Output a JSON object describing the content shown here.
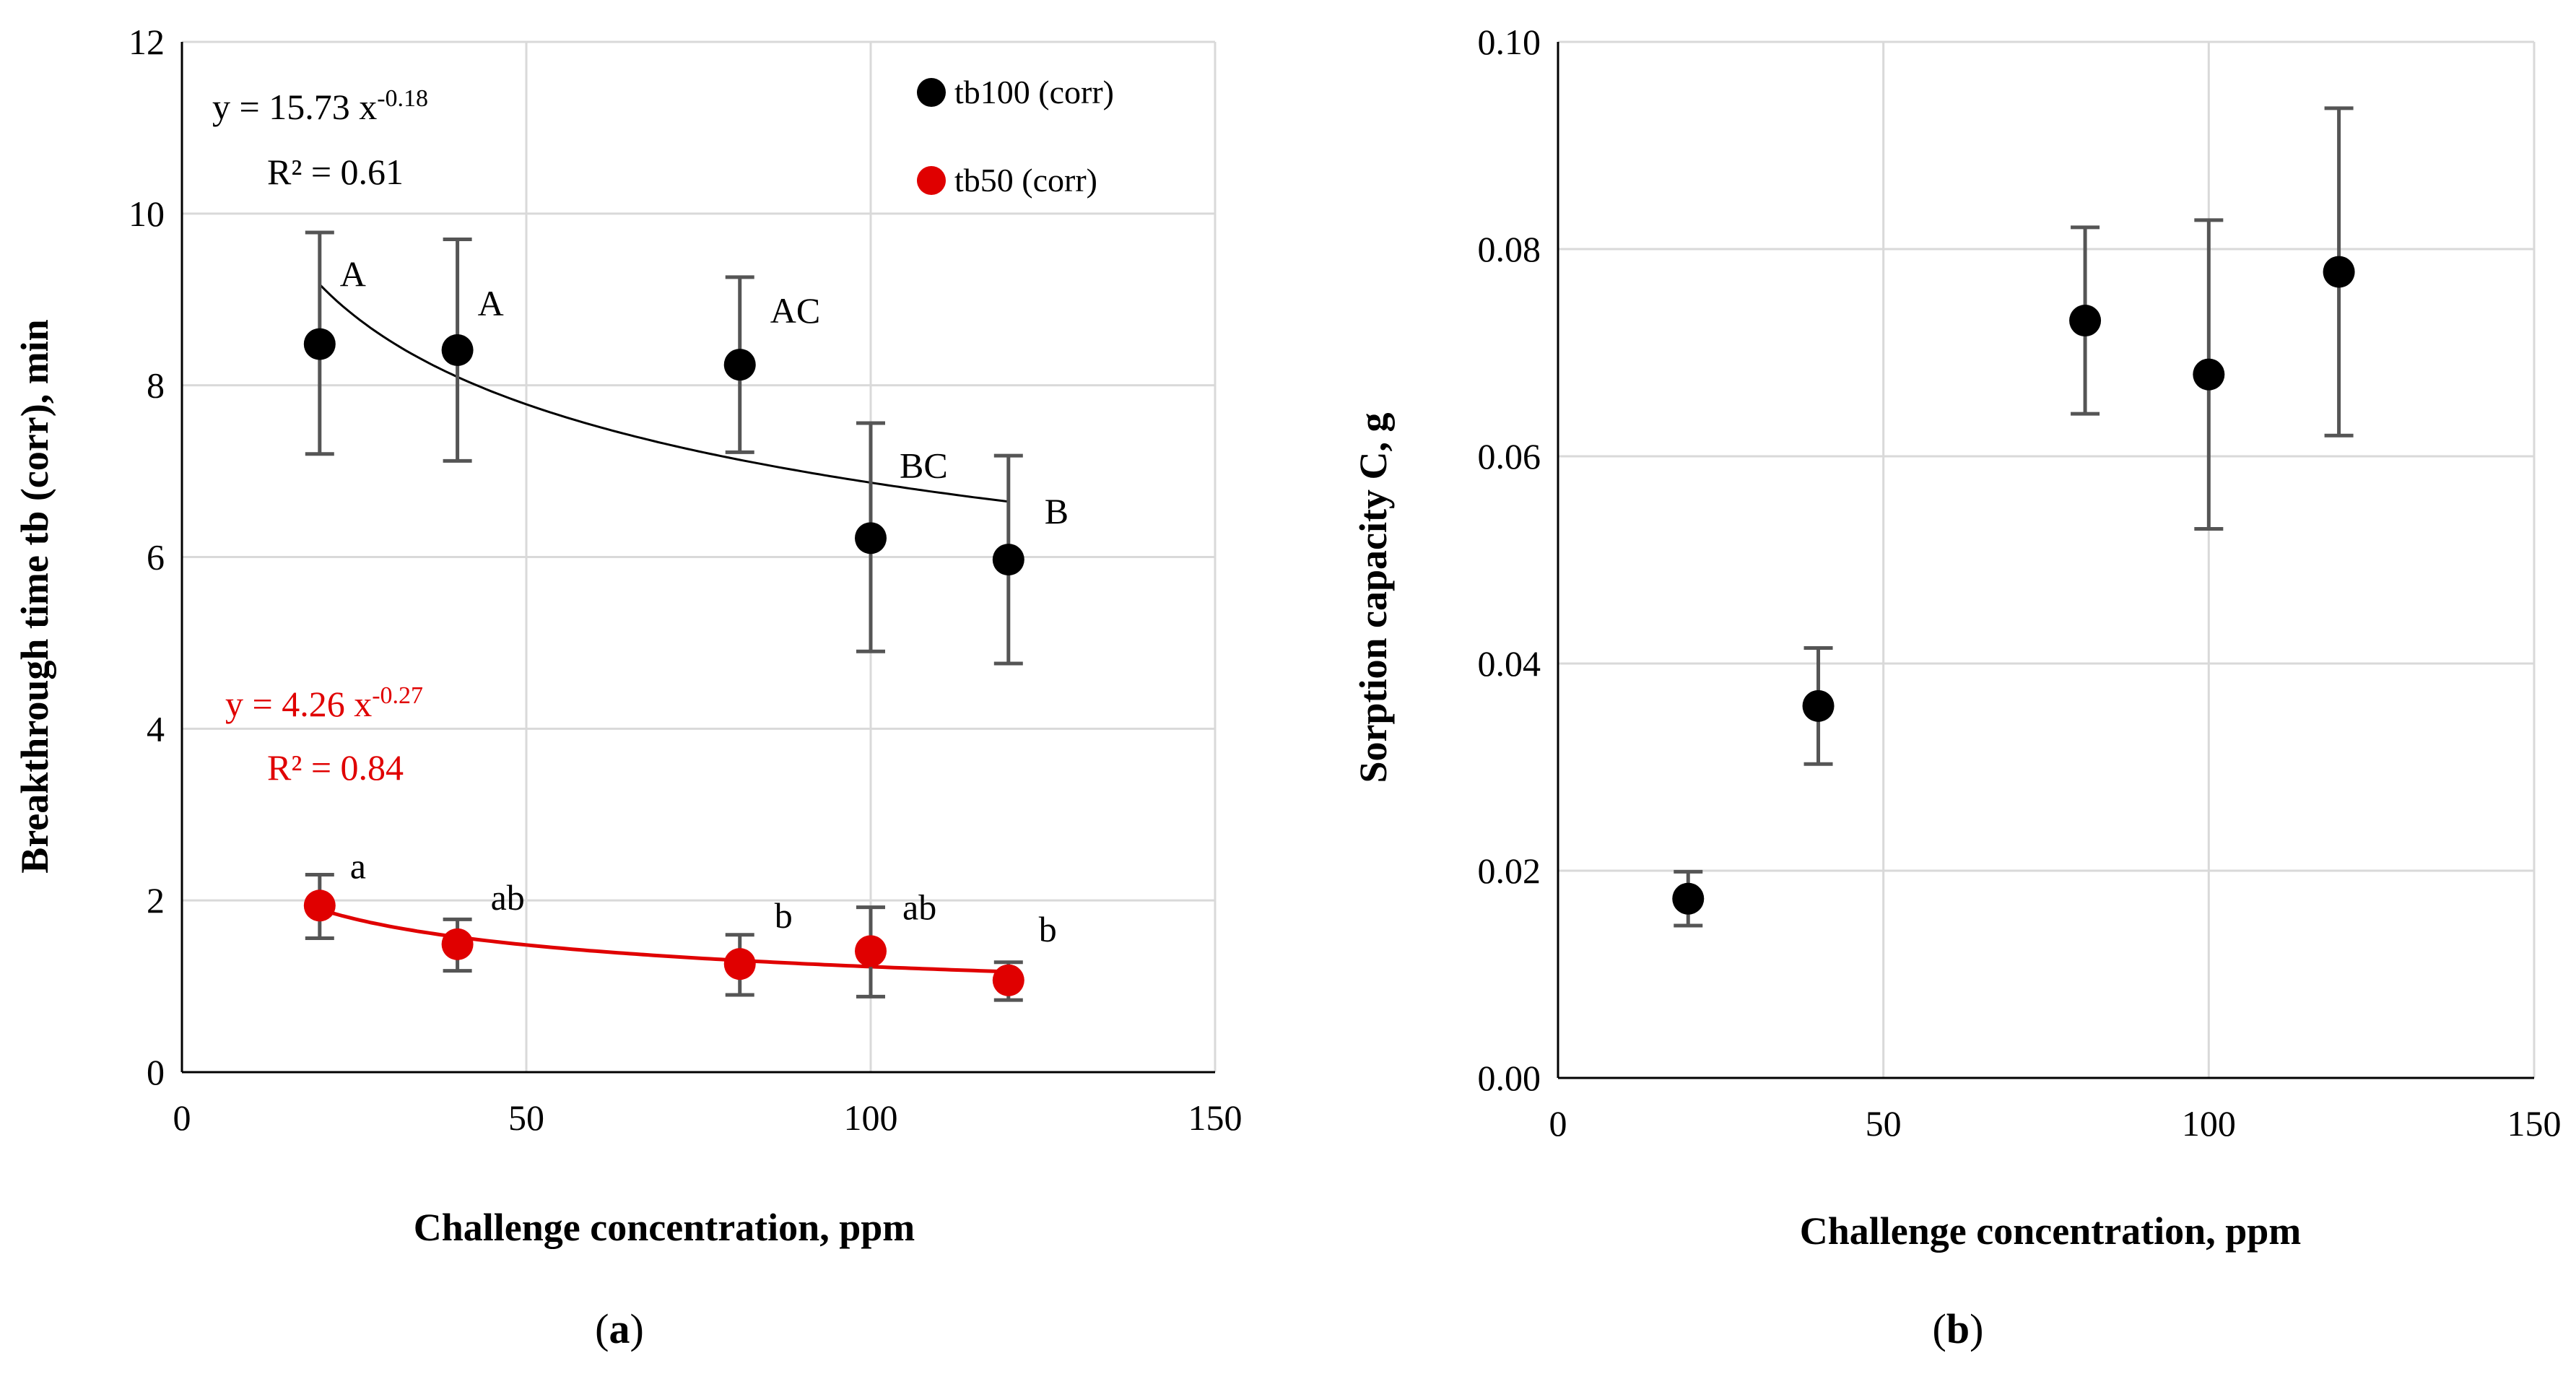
{
  "chart_data": [
    {
      "panel_label": "(a)",
      "type": "scatter",
      "xlabel": "Challenge concentration, ppm",
      "ylabel": "Breakthrough time tb (corr), min",
      "xlim": [
        0,
        150
      ],
      "ylim": [
        0,
        12
      ],
      "x_ticks": [
        0,
        50,
        100,
        150
      ],
      "y_ticks": [
        0,
        2,
        4,
        6,
        8,
        10,
        12
      ],
      "grid": true,
      "legend_position": "top-right",
      "series": [
        {
          "name": "tb100 (corr)",
          "color": "#000000",
          "x": [
            20,
            40,
            81,
            100,
            120
          ],
          "y": [
            8.48,
            8.41,
            8.24,
            6.22,
            5.97
          ],
          "err_low": [
            7.2,
            7.12,
            7.22,
            4.9,
            4.76
          ],
          "err_high": [
            9.78,
            9.7,
            9.26,
            7.56,
            7.18
          ],
          "letters": [
            "A",
            "A",
            "AC",
            "BC",
            "B"
          ],
          "trend": {
            "a": 15.73,
            "b": -0.18,
            "x_from": 20,
            "x_to": 120,
            "equation_prefix": "y = 15.73 x",
            "exponent": "-0.18",
            "r2": "R² = 0.61"
          }
        },
        {
          "name": "tb50 (corr)",
          "color": "#e00000",
          "x": [
            20,
            40,
            81,
            100,
            120
          ],
          "y": [
            1.94,
            1.49,
            1.26,
            1.41,
            1.07
          ],
          "err_low": [
            1.56,
            1.18,
            0.9,
            0.88,
            0.84
          ],
          "err_high": [
            2.3,
            1.78,
            1.6,
            1.92,
            1.28
          ],
          "letters": [
            "a",
            "ab",
            "b",
            "ab",
            "b"
          ],
          "trend": {
            "a": 4.26,
            "b": -0.27,
            "x_from": 20,
            "x_to": 120,
            "equation_prefix": "y = 4.26 x",
            "exponent": "-0.27",
            "r2": "R² = 0.84"
          }
        }
      ]
    },
    {
      "panel_label": "(b)",
      "type": "scatter",
      "xlabel": "Challenge concentration, ppm",
      "ylabel": "Sorption capacity C, g",
      "xlim": [
        0,
        150
      ],
      "ylim": [
        0,
        0.1
      ],
      "x_ticks": [
        0,
        50,
        100,
        150
      ],
      "y_ticks": [
        "0.00",
        "0.02",
        "0.04",
        "0.06",
        "0.08",
        "0.10"
      ],
      "grid": true,
      "series": [
        {
          "name": "C",
          "color": "#000000",
          "x": [
            20,
            40,
            81,
            100,
            120
          ],
          "y": [
            0.0173,
            0.0359,
            0.0731,
            0.0679,
            0.0778
          ],
          "err_low": [
            0.0147,
            0.0303,
            0.0641,
            0.053,
            0.062
          ],
          "err_high": [
            0.0199,
            0.0415,
            0.0821,
            0.0828,
            0.0936
          ]
        }
      ]
    }
  ]
}
